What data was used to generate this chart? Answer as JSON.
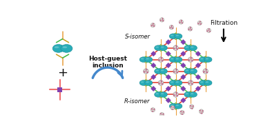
{
  "bg_color": "#ffffff",
  "title_filtration": "Filtration",
  "title_host_guest": "Host-guest\ninclusion",
  "s_isomer_label": "S-isomer",
  "r_isomer_label": "R-isomer",
  "teal": "#29adb8",
  "teal_dark": "#1a8a96",
  "blue": "#3060b0",
  "purple": "#8040b0",
  "red": "#e03020",
  "orange": "#e8a040",
  "gold": "#c8a020",
  "green": "#40b840",
  "salmon": "#f07070",
  "arrow_blue": "#4488cc",
  "text_color": "#111111",
  "figsize": [
    3.78,
    1.89
  ],
  "dpi": 100
}
